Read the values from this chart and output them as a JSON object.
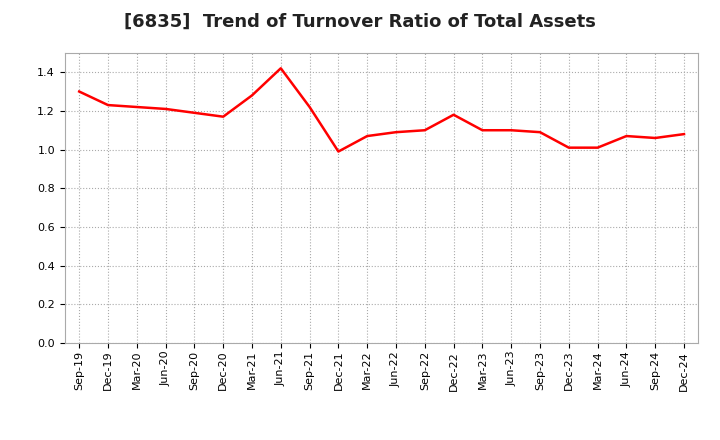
{
  "title": "[6835]  Trend of Turnover Ratio of Total Assets",
  "x_labels": [
    "Sep-19",
    "Dec-19",
    "Mar-20",
    "Jun-20",
    "Sep-20",
    "Dec-20",
    "Mar-21",
    "Jun-21",
    "Sep-21",
    "Dec-21",
    "Mar-22",
    "Jun-22",
    "Sep-22",
    "Dec-22",
    "Mar-23",
    "Jun-23",
    "Sep-23",
    "Dec-23",
    "Mar-24",
    "Jun-24",
    "Sep-24",
    "Dec-24"
  ],
  "y_values": [
    1.3,
    1.23,
    1.22,
    1.21,
    1.19,
    1.17,
    1.28,
    1.42,
    1.22,
    0.99,
    1.07,
    1.09,
    1.1,
    1.18,
    1.1,
    1.1,
    1.09,
    1.01,
    1.01,
    1.07,
    1.06,
    1.08
  ],
  "line_color": "#ff0000",
  "line_width": 1.8,
  "ylim": [
    0.0,
    1.5
  ],
  "yticks": [
    0.0,
    0.2,
    0.4,
    0.6,
    0.8,
    1.0,
    1.2,
    1.4
  ],
  "grid_color": "#aaaaaa",
  "background_color": "#ffffff",
  "title_fontsize": 13,
  "tick_fontsize": 8,
  "title_color": "#222222"
}
